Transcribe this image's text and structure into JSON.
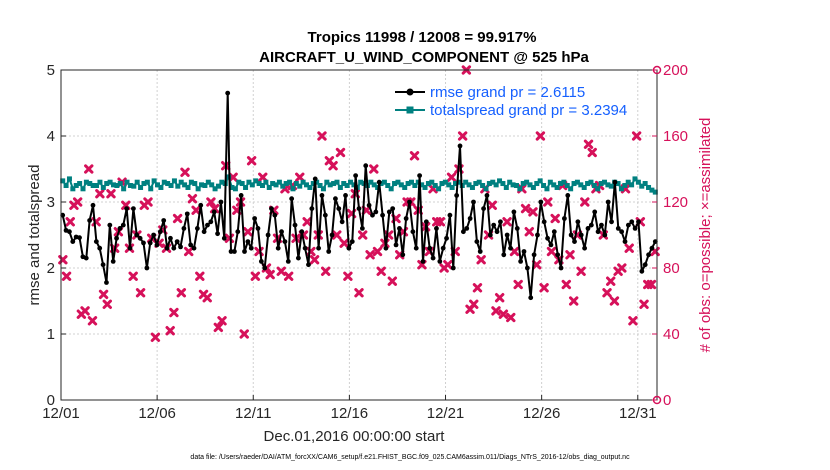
{
  "chart_data": {
    "type": "line",
    "title": "Tropics 11998 / 12008 = 99.917%",
    "subtitle": "AIRCRAFT_U_WIND_COMPONENT @ 525 hPa",
    "xlabel": "Dec.01,2016 00:00:00 start",
    "ylabel": "rmse and totalspread",
    "ylabel_right": "# of obs: o=possible; ×=assimilated",
    "footnote": "data file: /Users/raeder/DAI/ATM_forcXX/CAM6_setup/f.e21.FHIST_BGC.f09_025.CAM6assim.011/Diags_NTrS_2016-12/obs_diag_output.nc",
    "x_ticks": [
      {
        "value": 1,
        "label": "12/01"
      },
      {
        "value": 6,
        "label": "12/06"
      },
      {
        "value": 11,
        "label": "12/11"
      },
      {
        "value": 16,
        "label": "12/16"
      },
      {
        "value": 21,
        "label": "12/21"
      },
      {
        "value": 26,
        "label": "12/26"
      },
      {
        "value": 31,
        "label": "12/31"
      }
    ],
    "xlim": [
      1,
      32
    ],
    "ylim": [
      0,
      5
    ],
    "y_ticks": [
      "0",
      "1",
      "2",
      "3",
      "4",
      "5"
    ],
    "ylim_right": [
      0,
      200
    ],
    "y_ticks_right": [
      "0",
      "40",
      "80",
      "120",
      "160",
      "200"
    ],
    "colors": {
      "rmse": "#000000",
      "spread": "#008080",
      "obs": "#d6115a",
      "legend_text": "#1560ff"
    },
    "series": [
      {
        "name": "rmse grand pr = 2.6115",
        "axis": "left",
        "values": [
          2.8,
          2.57,
          2.55,
          2.4,
          2.47,
          2.46,
          2.17,
          2.15,
          2.72,
          2.95,
          2.4,
          2.3,
          2.05,
          1.78,
          2.65,
          2.1,
          2.45,
          2.6,
          2.65,
          2.9,
          2.3,
          2.9,
          2.5,
          2.45,
          2.38,
          2.0,
          2.38,
          2.5,
          2.35,
          2.55,
          2.72,
          2.3,
          2.45,
          2.3,
          2.4,
          2.32,
          2.6,
          2.82,
          2.35,
          2.3,
          2.6,
          2.95,
          2.55,
          2.65,
          2.7,
          2.85,
          2.52,
          3.0,
          2.45,
          4.65,
          2.25,
          2.25,
          2.55,
          3.1,
          2.25,
          2.4,
          2.3,
          2.75,
          2.6,
          2.1,
          2.0,
          2.5,
          2.9,
          2.8,
          2.3,
          2.55,
          2.4,
          2.1,
          3.05,
          2.65,
          2.15,
          2.55,
          2.3,
          2.05,
          2.9,
          3.35,
          2.3,
          3.1,
          2.8,
          2.25,
          2.5,
          3.05,
          2.9,
          2.7,
          3.1,
          2.3,
          2.4,
          3.4,
          2.9,
          2.6,
          3.55,
          2.95,
          2.8,
          2.85,
          3.3,
          2.8,
          2.3,
          2.85,
          2.9,
          2.35,
          2.6,
          2.2,
          2.75,
          3.0,
          2.55,
          2.3,
          3.4,
          2.1,
          2.7,
          2.3,
          2.15,
          2.6,
          2.1,
          2.3,
          2.45,
          2.8,
          2.0,
          3.1,
          3.85,
          2.55,
          2.6,
          2.75,
          3.0,
          2.4,
          2.25,
          2.9,
          3.1,
          2.5,
          2.65,
          2.55,
          2.7,
          2.2,
          2.5,
          2.3,
          2.85,
          2.6,
          2.1,
          2.25,
          2.0,
          1.55,
          2.2,
          2.5,
          3.0,
          2.7,
          2.45,
          2.35,
          2.55,
          2.2,
          2.0,
          2.75,
          3.1,
          2.5,
          2.4,
          2.7,
          2.5,
          2.3,
          2.6,
          2.65,
          2.85,
          2.55,
          2.65,
          2.5,
          3.0,
          2.7,
          3.3,
          2.6,
          2.55,
          2.4,
          2.65,
          2.7,
          2.6,
          2.7,
          1.95,
          2.05,
          2.2,
          2.3,
          2.4
        ]
      },
      {
        "name": "totalspread grand pr = 3.2394",
        "axis": "left",
        "values": [
          3.32,
          3.25,
          3.35,
          3.2,
          3.25,
          3.28,
          3.2,
          3.3,
          3.28,
          3.25,
          3.25,
          3.3,
          3.22,
          3.28,
          3.3,
          3.26,
          3.25,
          3.28,
          3.2,
          3.3,
          3.25,
          3.24,
          3.3,
          3.22,
          3.28,
          3.3,
          3.2,
          3.32,
          3.26,
          3.22,
          3.3,
          3.28,
          3.25,
          3.32,
          3.24,
          3.3,
          3.26,
          3.22,
          3.3,
          3.28,
          3.2,
          3.26,
          3.25,
          3.3,
          3.26,
          3.2,
          3.24,
          3.3,
          3.28,
          3.38,
          3.22,
          3.2,
          3.3,
          3.28,
          3.22,
          3.3,
          3.26,
          3.32,
          3.28,
          3.25,
          3.3,
          3.22,
          3.28,
          3.26,
          3.3,
          3.24,
          3.28,
          3.3,
          3.2,
          3.28,
          3.24,
          3.3,
          3.26,
          3.22,
          3.28,
          3.3,
          3.25,
          3.2,
          3.3,
          3.26,
          3.28,
          3.3,
          3.22,
          3.28,
          3.25,
          3.3,
          3.26,
          3.22,
          3.3,
          3.28,
          3.25,
          3.3,
          3.26,
          3.22,
          3.28,
          3.3,
          3.25,
          3.2,
          3.28,
          3.3,
          3.26,
          3.22,
          3.28,
          3.3,
          3.25,
          3.3,
          3.26,
          3.22,
          3.28,
          3.3,
          3.25,
          3.2,
          3.28,
          3.3,
          3.26,
          3.22,
          3.28,
          3.3,
          3.25,
          3.3,
          3.26,
          3.22,
          3.28,
          3.3,
          3.25,
          3.2,
          3.28,
          3.3,
          3.26,
          3.32,
          3.28,
          3.22,
          3.3,
          3.26,
          3.25,
          3.2,
          3.28,
          3.3,
          3.26,
          3.22,
          3.28,
          3.32,
          3.25,
          3.2,
          3.3,
          3.26,
          3.22,
          3.28,
          3.3,
          3.25,
          3.2,
          3.28,
          3.3,
          3.26,
          3.22,
          3.28,
          3.3,
          3.25,
          3.2,
          3.28,
          3.3,
          3.26,
          3.24,
          3.3,
          3.28,
          3.2,
          3.25,
          3.3,
          3.26,
          3.35,
          3.3,
          3.24,
          3.28,
          3.22,
          3.18,
          3.15
        ]
      },
      {
        "name": "# of obs (assimilated)",
        "axis": "right",
        "style": "markers",
        "values": [
          85,
          75,
          108,
          118,
          120,
          52,
          54,
          140,
          48,
          108,
          125,
          64,
          58,
          125,
          92,
          102,
          132,
          118,
          92,
          75,
          100,
          65,
          118,
          120,
          98,
          38,
          95,
          103,
          92,
          42,
          53,
          110,
          65,
          138,
          90,
          122,
          115,
          75,
          64,
          62,
          120,
          116,
          44,
          48,
          142,
          98,
          135,
          115,
          120,
          40,
          102,
          145,
          75,
          90,
          135,
          80,
          76,
          115,
          98,
          78,
          128,
          75,
          130,
          98,
          135,
          100,
          108,
          90,
          85,
          100,
          160,
          78,
          145,
          142,
          100,
          150,
          95,
          75,
          113,
          125,
          65,
          100,
          115,
          88,
          140,
          90,
          78,
          95,
          100,
          72,
          110,
          88,
          102,
          120,
          120,
          148,
          115,
          82,
          105,
          90,
          128,
          108,
          108,
          80,
          82,
          135,
          90,
          140,
          160,
          200,
          55,
          58,
          68,
          85,
          128,
          100,
          118,
          54,
          62,
          52,
          108,
          50,
          90,
          70,
          128,
          116,
          102,
          114,
          82,
          160,
          68,
          120,
          90,
          110,
          85,
          130,
          70,
          88,
          60,
          100,
          78,
          120,
          155,
          150,
          128,
          130,
          100,
          65,
          72,
          60,
          78,
          80,
          128,
          92,
          48,
          160,
          108,
          58,
          70,
          70,
          90
        ]
      }
    ]
  }
}
